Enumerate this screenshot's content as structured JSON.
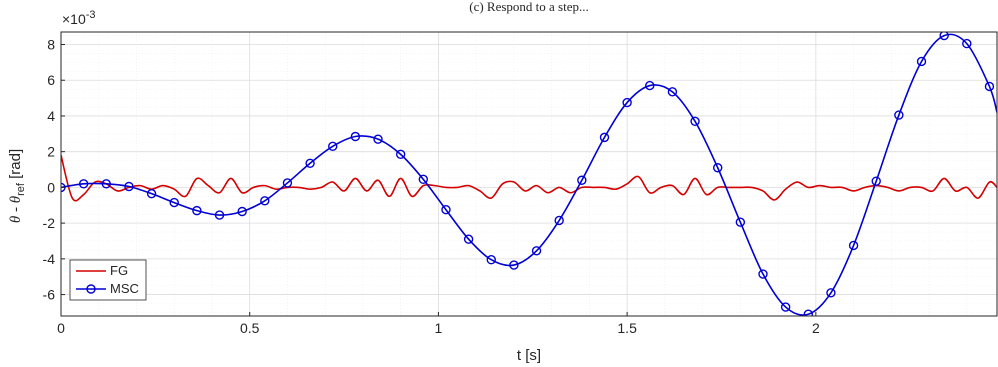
{
  "chart_data": {
    "type": "line",
    "title": "(c) Respond to a step...",
    "xlabel": "t [s]",
    "ylabel": "θ - θ_ref [rad]",
    "ylabel_parts": {
      "a": "θ - θ",
      "sub": "ref",
      "unit": " [rad]"
    },
    "exponent_label": {
      "base": "×10",
      "exp": "-3"
    },
    "xlim": [
      0,
      2.48
    ],
    "ylim": [
      -7.2,
      8.7
    ],
    "x_ticks": [
      0,
      0.5,
      1,
      1.5,
      2
    ],
    "x_tick_labels": [
      "0",
      "0.5",
      "1",
      "1.5",
      "2"
    ],
    "y_ticks": [
      -6,
      -4,
      -2,
      0,
      2,
      4,
      6,
      8
    ],
    "y_tick_labels": [
      "-6",
      "-4",
      "-2",
      "0",
      "2",
      "4",
      "6",
      "8"
    ],
    "grid": true,
    "minor_grid": true,
    "legend_position": "bottom-left",
    "series": [
      {
        "name": "FG",
        "color": "#d40000",
        "marker": "none",
        "x": [
          0,
          0.03,
          0.06,
          0.09,
          0.12,
          0.15,
          0.18,
          0.21,
          0.24,
          0.27,
          0.3,
          0.33,
          0.36,
          0.39,
          0.42,
          0.45,
          0.48,
          0.51,
          0.54,
          0.57,
          0.6,
          0.63,
          0.66,
          0.69,
          0.72,
          0.75,
          0.78,
          0.81,
          0.84,
          0.87,
          0.9,
          0.93,
          0.96,
          0.99,
          1.02,
          1.05,
          1.08,
          1.11,
          1.14,
          1.17,
          1.2,
          1.23,
          1.26,
          1.29,
          1.32,
          1.35,
          1.38,
          1.41,
          1.44,
          1.47,
          1.5,
          1.53,
          1.56,
          1.59,
          1.62,
          1.65,
          1.68,
          1.71,
          1.74,
          1.77,
          1.8,
          1.83,
          1.86,
          1.89,
          1.92,
          1.95,
          1.98,
          2.01,
          2.04,
          2.07,
          2.1,
          2.13,
          2.16,
          2.19,
          2.22,
          2.25,
          2.28,
          2.31,
          2.34,
          2.37,
          2.4,
          2.43,
          2.46,
          2.48
        ],
        "y": [
          1.8,
          -0.6,
          -0.4,
          0.3,
          0.2,
          -0.2,
          0.0,
          0.1,
          -0.1,
          0.1,
          -0.1,
          -0.5,
          0.5,
          0.1,
          -0.3,
          0.5,
          -0.3,
          0.0,
          0.1,
          -0.1,
          0.0,
          0.0,
          -0.1,
          0.0,
          0.3,
          -0.2,
          0.5,
          -0.2,
          0.4,
          -0.5,
          0.5,
          -0.5,
          0.1,
          0.1,
          0.0,
          0.0,
          0.1,
          -0.2,
          -0.6,
          0.2,
          0.3,
          -0.2,
          0.1,
          -0.3,
          0.0,
          -0.3,
          0.0,
          0.0,
          0.0,
          -0.1,
          0.2,
          0.6,
          -0.3,
          0.0,
          0.1,
          -0.4,
          0.5,
          -0.4,
          0.0,
          0.0,
          0.0,
          0.0,
          -0.2,
          -0.7,
          -0.1,
          0.3,
          0.0,
          0.1,
          0.0,
          0.0,
          -0.2,
          0.0,
          0.1,
          0.0,
          -0.2,
          0.0,
          0.0,
          -0.2,
          0.5,
          -0.2,
          0.0,
          -0.6,
          0.3,
          0.0
        ]
      },
      {
        "name": "MSC",
        "color": "#0000d4",
        "marker": "o",
        "x": [
          0,
          0.06,
          0.12,
          0.18,
          0.24,
          0.3,
          0.36,
          0.42,
          0.48,
          0.54,
          0.6,
          0.66,
          0.72,
          0.78,
          0.84,
          0.9,
          0.96,
          1.02,
          1.08,
          1.14,
          1.2,
          1.26,
          1.32,
          1.38,
          1.44,
          1.5,
          1.56,
          1.62,
          1.68,
          1.74,
          1.8,
          1.86,
          1.92,
          1.98,
          2.04,
          2.1,
          2.16,
          2.22,
          2.28,
          2.34,
          2.4,
          2.46,
          2.48
        ],
        "y": [
          0.0,
          0.2,
          0.2,
          0.05,
          -0.35,
          -0.85,
          -1.3,
          -1.55,
          -1.35,
          -0.75,
          0.25,
          1.35,
          2.3,
          2.85,
          2.7,
          1.85,
          0.45,
          -1.25,
          -2.9,
          -4.05,
          -4.35,
          -3.55,
          -1.85,
          0.4,
          2.8,
          4.75,
          5.7,
          5.35,
          3.7,
          1.1,
          -1.95,
          -4.85,
          -6.7,
          -7.1,
          -5.9,
          -3.25,
          0.35,
          4.05,
          7.05,
          8.5,
          8.05,
          5.65,
          4.2
        ]
      }
    ]
  }
}
